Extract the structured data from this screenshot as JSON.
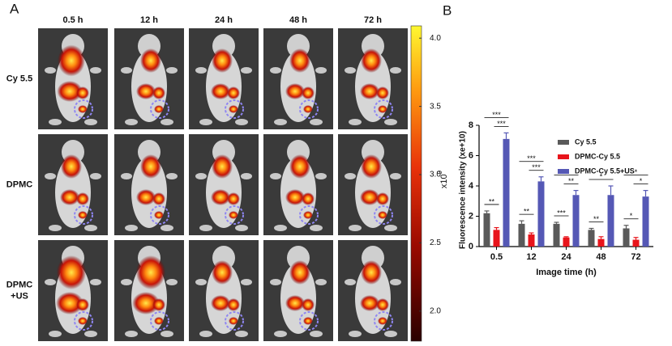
{
  "panel_a": {
    "label": "A",
    "columns": [
      "0.5 h",
      "12 h",
      "24 h",
      "48 h",
      "72 h"
    ],
    "rows": [
      [
        "Cy 5.5"
      ],
      [
        "DPMC"
      ],
      [
        "DPMC",
        "+US"
      ]
    ],
    "colorbar": {
      "lim": [
        1.78,
        4.09
      ],
      "ticks": [
        {
          "value": 2,
          "label": "2.0"
        },
        {
          "value": 2.5,
          "label": "2.5"
        },
        {
          "value": 3,
          "label": "3.0"
        },
        {
          "value": 3.5,
          "label": "3.5"
        },
        {
          "value": 4,
          "label": "4.0"
        }
      ],
      "unit": "x10",
      "exponent": "9"
    }
  },
  "chart_data": {
    "type": "bar",
    "panel_label": "B",
    "ylabel": "Fluorescence intensity (xe+10)",
    "xlabel": "Image time (h)",
    "categories": [
      "0.5",
      "12",
      "24",
      "48",
      "72"
    ],
    "ylim": [
      0,
      8
    ],
    "yticks": [
      0,
      2,
      4,
      6,
      8
    ],
    "legend": "upper right",
    "series": [
      {
        "name": "Cy 5.5",
        "color": "#5a5a5a",
        "values": [
          2.2,
          1.5,
          1.5,
          1.1,
          1.2
        ],
        "errors": [
          0.15,
          0.2,
          0.1,
          0.1,
          0.2
        ]
      },
      {
        "name": "DPMC-Cy 5.5",
        "color": "#e8141b",
        "values": [
          1.1,
          0.8,
          0.6,
          0.5,
          0.45
        ],
        "errors": [
          0.15,
          0.1,
          0.05,
          0.15,
          0.15
        ]
      },
      {
        "name": "DPMC-Cy 5.5+US",
        "color": "#5558b5",
        "values": [
          7.1,
          4.3,
          3.4,
          3.4,
          3.3
        ],
        "errors": [
          0.4,
          0.3,
          0.3,
          0.6,
          0.4
        ]
      }
    ],
    "annotations": [
      {
        "category": 0,
        "series": [
          0,
          1
        ],
        "text": "**"
      },
      {
        "category": 0,
        "series": [
          1,
          2
        ],
        "text": "***"
      },
      {
        "category": 0,
        "series": [
          0,
          2
        ],
        "text": "***"
      },
      {
        "category": 1,
        "series": [
          0,
          1
        ],
        "text": "**"
      },
      {
        "category": 1,
        "series": [
          1,
          2
        ],
        "text": "***"
      },
      {
        "category": 1,
        "series": [
          0,
          2
        ],
        "text": "***"
      },
      {
        "category": 2,
        "series": [
          0,
          1
        ],
        "text": "***"
      },
      {
        "category": 2,
        "series": [
          1,
          2
        ],
        "text": "**"
      },
      {
        "category": 2,
        "series": [
          0,
          2
        ],
        "text": "**"
      },
      {
        "category": 3,
        "series": [
          0,
          1
        ],
        "text": "**"
      },
      {
        "category": 3,
        "series": [
          0,
          2
        ],
        "text": "*"
      },
      {
        "category": 4,
        "series": [
          0,
          1
        ],
        "text": "*"
      },
      {
        "category": 4,
        "series": [
          1,
          2
        ],
        "text": "*"
      },
      {
        "category": 4,
        "series": [
          0,
          2
        ],
        "text": "*"
      }
    ]
  }
}
